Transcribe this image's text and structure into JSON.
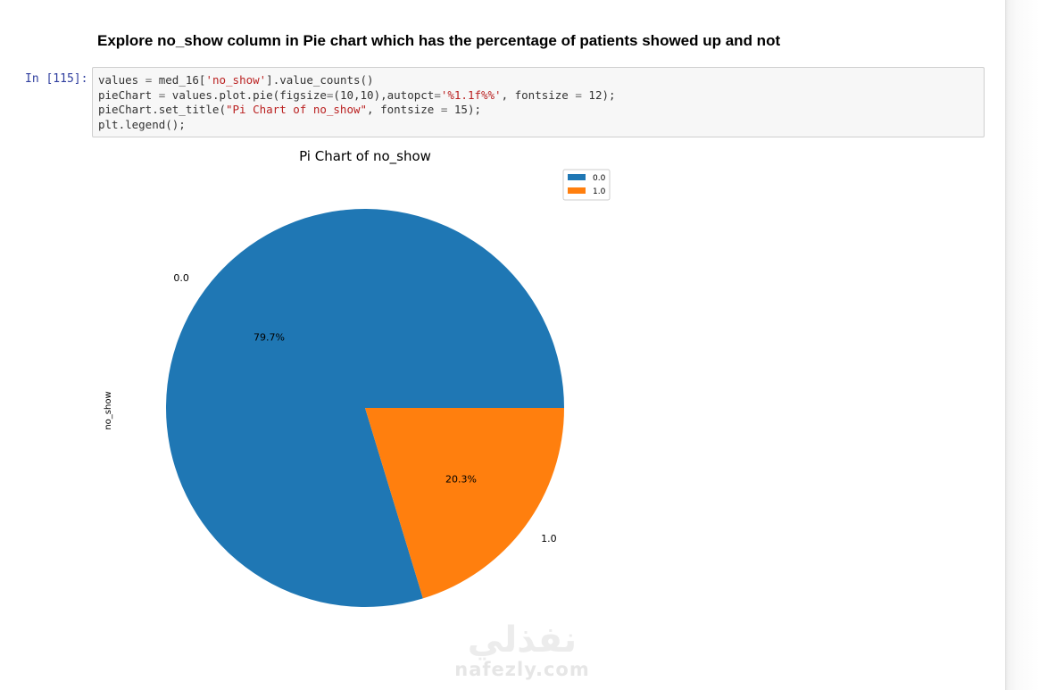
{
  "notebook": {
    "heading": "Explore no_show column in Pie chart which has the percentage of patients showed up and not",
    "cell": {
      "prompt": "In [115]:",
      "code_lines": [
        [
          {
            "t": "values "
          },
          {
            "t": "=",
            "c": "op"
          },
          {
            "t": " med_16["
          },
          {
            "t": "'no_show'",
            "c": "str"
          },
          {
            "t": "].value_counts()"
          }
        ],
        [
          {
            "t": "pieChart "
          },
          {
            "t": "=",
            "c": "op"
          },
          {
            "t": " values.plot.pie(figsize"
          },
          {
            "t": "=",
            "c": "op"
          },
          {
            "t": "(10,10),autopct"
          },
          {
            "t": "=",
            "c": "op"
          },
          {
            "t": "'%1.1f%%'",
            "c": "str"
          },
          {
            "t": ", fontsize "
          },
          {
            "t": "=",
            "c": "op"
          },
          {
            "t": " 12);"
          }
        ],
        [
          {
            "t": "pieChart.set_title("
          },
          {
            "t": "\"Pi Chart of no_show\"",
            "c": "str"
          },
          {
            "t": ", fontsize "
          },
          {
            "t": "=",
            "c": "op"
          },
          {
            "t": " 15);"
          }
        ],
        [
          {
            "t": "plt.legend();"
          }
        ]
      ]
    }
  },
  "chart_data": {
    "type": "pie",
    "title": "Pi Chart of no_show",
    "ylabel": "no_show",
    "categories": [
      "0.0",
      "1.0"
    ],
    "values": [
      79.7,
      20.3
    ],
    "pct_labels": [
      "79.7%",
      "20.3%"
    ],
    "colors": [
      "#1f77b4",
      "#ff7f0e"
    ],
    "legend": {
      "placement": "top-right",
      "entries": [
        "0.0",
        "1.0"
      ]
    },
    "start_angle": 0
  },
  "watermark": {
    "arabic": "نفذلي",
    "latin": "nafezly.com"
  }
}
